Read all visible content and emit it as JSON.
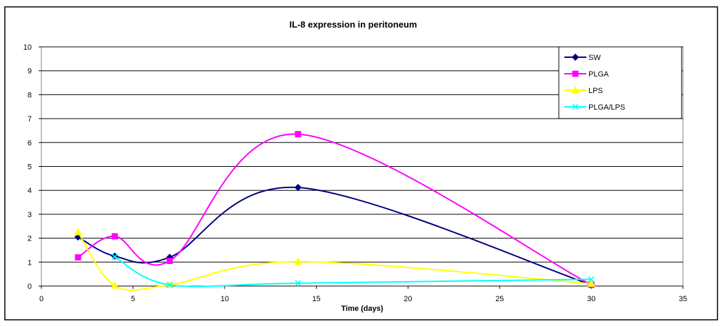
{
  "chart_data": {
    "type": "line",
    "title": "IL-8 expression in peritoneum",
    "xlabel": "Time (days)",
    "ylabel": "",
    "xlim": [
      0,
      35
    ],
    "ylim": [
      0,
      10
    ],
    "xticks": [
      0,
      5,
      10,
      15,
      20,
      25,
      30,
      35
    ],
    "yticks": [
      0,
      1,
      2,
      3,
      4,
      5,
      6,
      7,
      8,
      9,
      10
    ],
    "grid": "horizontal",
    "legend": "top-right",
    "smooth": true,
    "series": [
      {
        "name": "SW",
        "color": "#000080",
        "marker": "diamond",
        "x": [
          2,
          4,
          7,
          14,
          30
        ],
        "y": [
          2.05,
          1.25,
          1.2,
          4.12,
          0.05
        ]
      },
      {
        "name": "PLGA",
        "color": "#FF00FF",
        "marker": "square",
        "x": [
          2,
          4,
          7,
          14,
          30
        ],
        "y": [
          1.2,
          2.08,
          1.05,
          6.35,
          0.05
        ]
      },
      {
        "name": "LPS",
        "color": "#FFFF00",
        "marker": "triangle",
        "x": [
          2,
          4,
          7,
          14,
          30
        ],
        "y": [
          2.25,
          0.02,
          0.05,
          1.02,
          0.1
        ]
      },
      {
        "name": "PLGA/LPS",
        "color": "#00FFFF",
        "marker": "x",
        "x": [
          4,
          7,
          14,
          30
        ],
        "y": [
          1.22,
          0.05,
          0.12,
          0.28
        ]
      }
    ]
  }
}
